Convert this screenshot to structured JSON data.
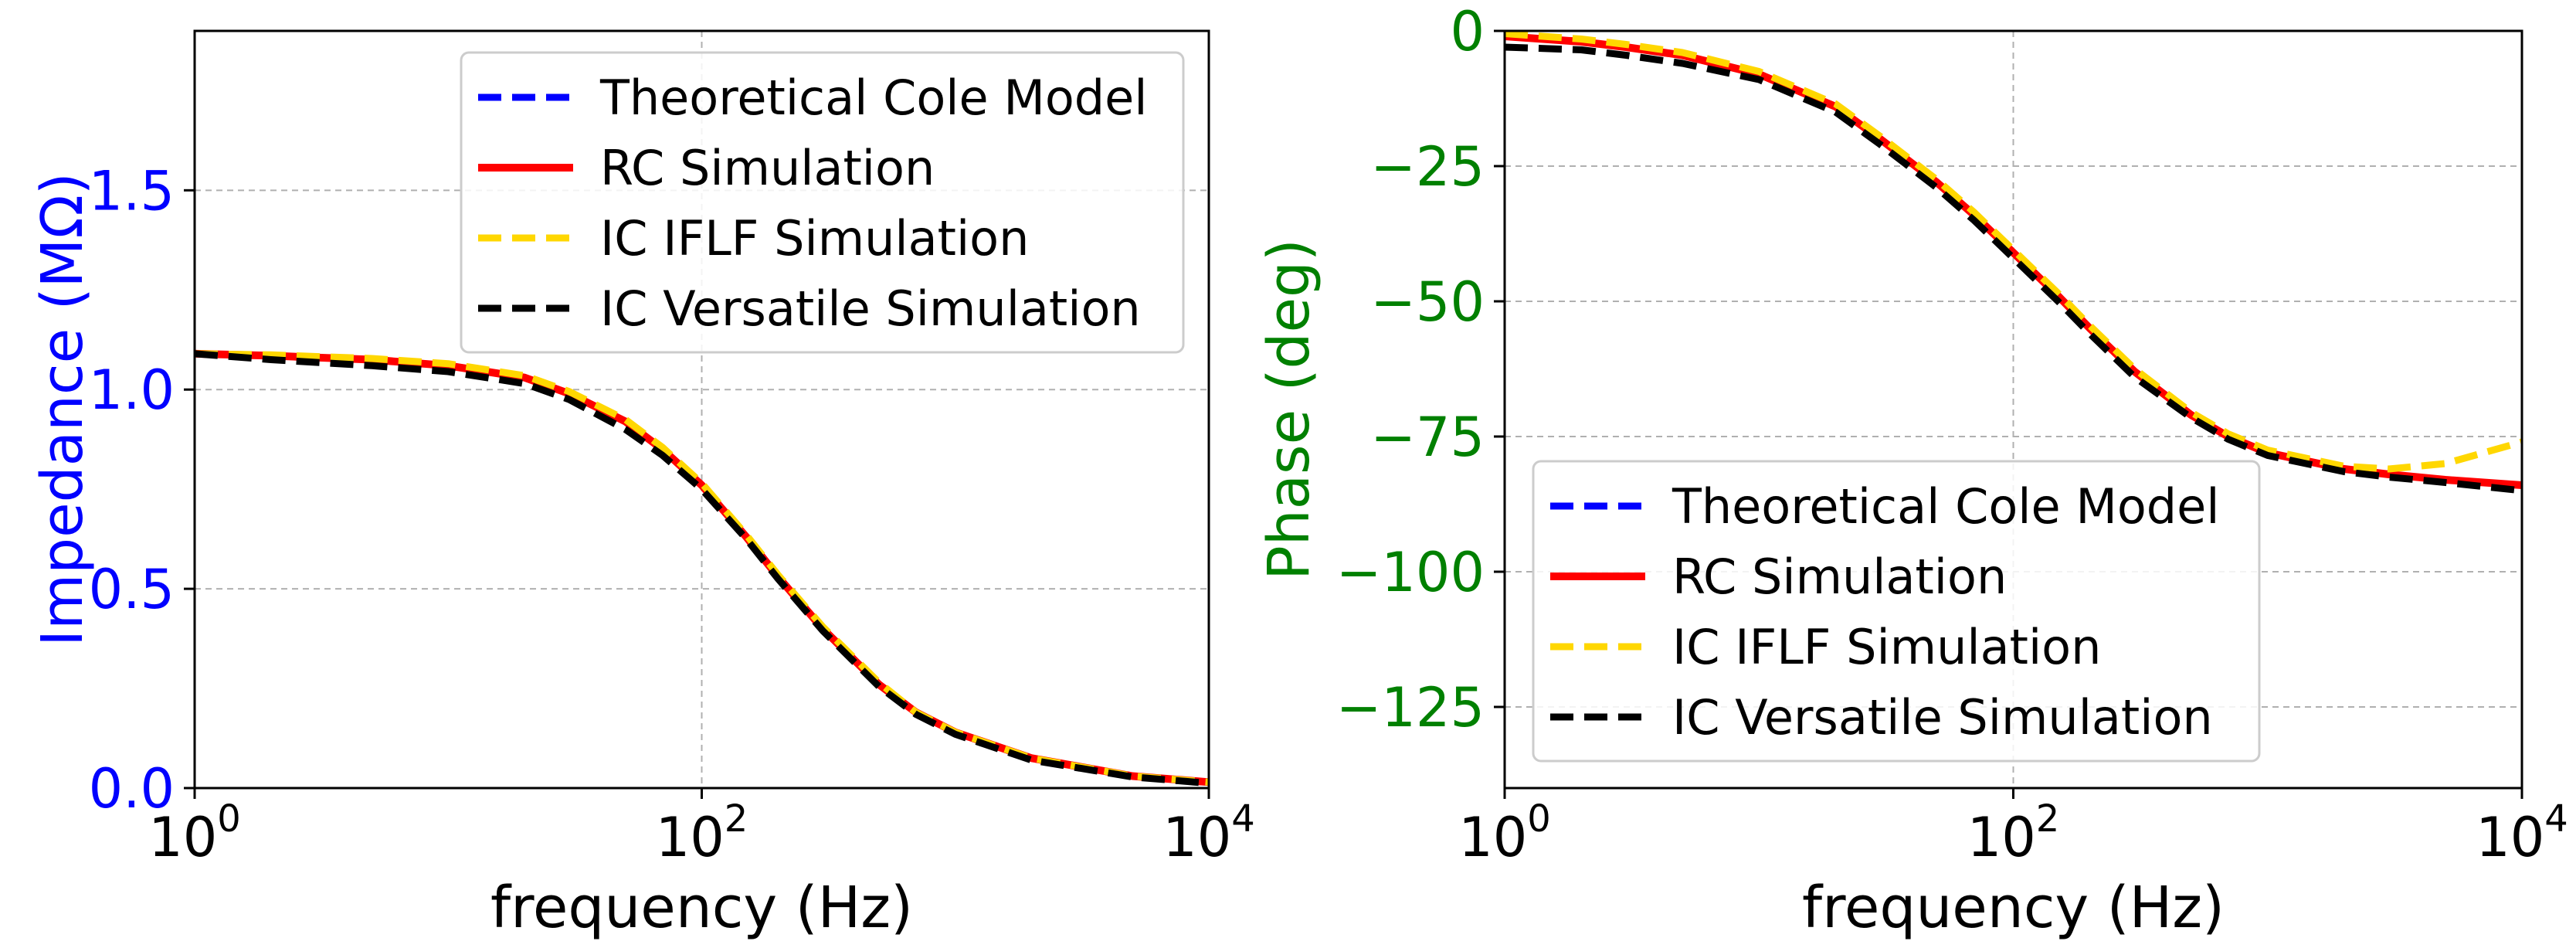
{
  "chart_data": [
    {
      "type": "line",
      "xscale": "log",
      "xlim": [
        1,
        10000
      ],
      "ylim": [
        0,
        1.9
      ],
      "xlabel": "frequency (Hz)",
      "ylabel": "Impedance (MΩ)",
      "ylabel_color": "#0000ff",
      "ytick_color": "#0000ff",
      "grid": true,
      "legend_position": "top-right",
      "x_ticks": [
        {
          "value": 1,
          "base": "10",
          "exp": "0"
        },
        {
          "value": 100,
          "base": "10",
          "exp": "2"
        },
        {
          "value": 10000,
          "base": "10",
          "exp": "4"
        }
      ],
      "y_ticks": [
        {
          "value": 0.0,
          "label": "0.0"
        },
        {
          "value": 0.5,
          "label": "0.5"
        },
        {
          "value": 1.0,
          "label": "1.0"
        },
        {
          "value": 1.5,
          "label": "1.5"
        }
      ],
      "x": [
        1,
        2,
        5,
        10,
        20,
        30,
        50,
        70,
        100,
        150,
        200,
        300,
        500,
        700,
        1000,
        2000,
        5000,
        10000
      ],
      "series": [
        {
          "name": "Theoretical Cole Model",
          "color": "#0000ff",
          "style": "dashed",
          "values": [
            1.09,
            1.085,
            1.075,
            1.06,
            1.03,
            0.99,
            0.92,
            0.85,
            0.76,
            0.63,
            0.53,
            0.4,
            0.26,
            0.19,
            0.14,
            0.075,
            0.03,
            0.015
          ]
        },
        {
          "name": "RC Simulation",
          "color": "#ff0000",
          "style": "solid",
          "values": [
            1.09,
            1.085,
            1.075,
            1.06,
            1.03,
            0.99,
            0.92,
            0.85,
            0.76,
            0.63,
            0.53,
            0.4,
            0.26,
            0.19,
            0.14,
            0.075,
            0.03,
            0.015
          ]
        },
        {
          "name": "IC IFLF Simulation",
          "color": "#ffd700",
          "style": "dashed",
          "values": [
            1.09,
            1.087,
            1.078,
            1.065,
            1.035,
            0.995,
            0.925,
            0.855,
            0.765,
            0.635,
            0.535,
            0.405,
            0.265,
            0.19,
            0.14,
            0.075,
            0.03,
            0.015
          ]
        },
        {
          "name": "IC Versatile Simulation",
          "color": "#000000",
          "style": "dashed",
          "values": [
            1.09,
            1.075,
            1.06,
            1.045,
            1.015,
            0.975,
            0.9,
            0.835,
            0.75,
            0.625,
            0.525,
            0.395,
            0.255,
            0.185,
            0.135,
            0.07,
            0.028,
            0.012
          ]
        }
      ]
    },
    {
      "type": "line",
      "xscale": "log",
      "xlim": [
        1,
        10000
      ],
      "ylim": [
        -140,
        0
      ],
      "xlabel": "frequency (Hz)",
      "ylabel": "Phase (deg)",
      "ylabel_color": "#008000",
      "ytick_color": "#008000",
      "grid": true,
      "legend_position": "bottom-right",
      "x_ticks": [
        {
          "value": 1,
          "base": "10",
          "exp": "0"
        },
        {
          "value": 100,
          "base": "10",
          "exp": "2"
        },
        {
          "value": 10000,
          "base": "10",
          "exp": "4"
        }
      ],
      "y_ticks": [
        {
          "value": 0,
          "label": "0"
        },
        {
          "value": -25,
          "label": "−25"
        },
        {
          "value": -50,
          "label": "−50"
        },
        {
          "value": -75,
          "label": "−75"
        },
        {
          "value": -100,
          "label": "−100"
        },
        {
          "value": -125,
          "label": "−125"
        }
      ],
      "x": [
        1,
        2,
        3,
        5,
        10,
        20,
        30,
        50,
        70,
        100,
        150,
        200,
        300,
        500,
        700,
        1000,
        2000,
        3000,
        5000,
        10000
      ],
      "series": [
        {
          "name": "Theoretical Cole Model",
          "color": "#0000ff",
          "style": "dashed",
          "values": [
            -1,
            -2,
            -3,
            -4.5,
            -8,
            -14,
            -20,
            -28,
            -34,
            -41,
            -49,
            -55,
            -63,
            -71,
            -75,
            -78,
            -81,
            -82,
            -83,
            -84
          ]
        },
        {
          "name": "RC Simulation",
          "color": "#ff0000",
          "style": "solid",
          "values": [
            -1,
            -2,
            -3,
            -4.5,
            -8,
            -14,
            -20,
            -28,
            -34,
            -41,
            -49,
            -55,
            -63,
            -71,
            -75,
            -78,
            -81,
            -82,
            -83,
            -84
          ]
        },
        {
          "name": "IC IFLF Simulation",
          "color": "#ffd700",
          "style": "dashed",
          "values": [
            -0.5,
            -1.5,
            -2.5,
            -4,
            -7.5,
            -13.5,
            -19.5,
            -27.5,
            -33.5,
            -40.5,
            -48.5,
            -54.5,
            -62.5,
            -70.5,
            -74.5,
            -77.5,
            -80.5,
            -81,
            -80,
            -76
          ]
        },
        {
          "name": "IC Versatile Simulation",
          "color": "#000000",
          "style": "dashed",
          "values": [
            -3,
            -3.5,
            -4.5,
            -6,
            -9,
            -15,
            -21,
            -29,
            -35,
            -42,
            -50,
            -56,
            -64,
            -71.5,
            -75.5,
            -78.5,
            -81.5,
            -82.5,
            -83.5,
            -85
          ]
        }
      ]
    }
  ]
}
